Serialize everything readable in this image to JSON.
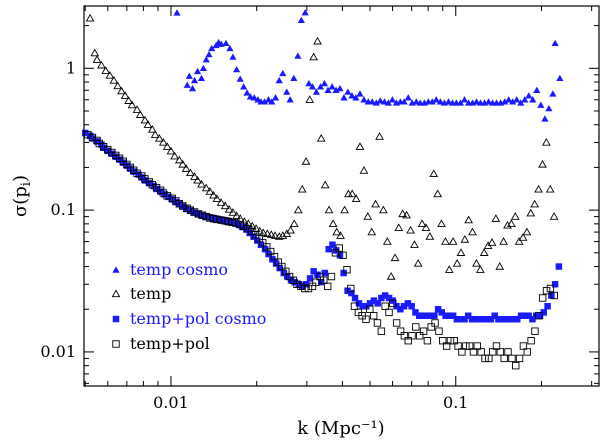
{
  "chart_data": {
    "type": "scatter",
    "xlabel": "k (Mpc⁻¹)",
    "ylabel": "σ(p",
    "ylabel_sub": "i",
    "ylabel_close": ")",
    "x_scale": "log",
    "y_scale": "log",
    "xlim": [
      0.00495,
      0.3184
    ],
    "ylim": [
      0.00575,
      2.75
    ],
    "grid": false,
    "legend_position": "bottom-left",
    "x_tick_labels": [
      {
        "value": 0.01,
        "label": "0.01"
      },
      {
        "value": 0.1,
        "label": "0.1"
      }
    ],
    "y_tick_labels": [
      {
        "value": 0.01,
        "label": "0.01"
      },
      {
        "value": 0.1,
        "label": "0.1"
      },
      {
        "value": 1,
        "label": "1"
      }
    ],
    "series": [
      {
        "name": "temp cosmo",
        "marker": "filled-triangle",
        "color": "#1a1aff",
        "x": [
          0.0105,
          0.0114,
          0.0116,
          0.0119,
          0.0121,
          0.0124,
          0.0128,
          0.013,
          0.0133,
          0.0136,
          0.0139,
          0.0144,
          0.0147,
          0.015,
          0.0156,
          0.0161,
          0.0165,
          0.017,
          0.0175,
          0.018,
          0.0185,
          0.019,
          0.0196,
          0.0202,
          0.0207,
          0.0213,
          0.022,
          0.0226,
          0.0233,
          0.024,
          0.0247,
          0.0255,
          0.0262,
          0.027,
          0.0279,
          0.0287,
          0.0296,
          0.0305,
          0.0314,
          0.0324,
          0.0335,
          0.0346,
          0.0356,
          0.0368,
          0.038,
          0.0392,
          0.0405,
          0.0418,
          0.0432,
          0.0446,
          0.0461,
          0.0476,
          0.0493,
          0.0509,
          0.0526,
          0.0543,
          0.0562,
          0.058,
          0.0599,
          0.0619,
          0.0639,
          0.0659,
          0.0681,
          0.0703,
          0.0727,
          0.075,
          0.0776,
          0.0801,
          0.0827,
          0.0854,
          0.0883,
          0.0912,
          0.0943,
          0.0974,
          0.1005,
          0.1039,
          0.1073,
          0.1109,
          0.1145,
          0.1183,
          0.1221,
          0.1262,
          0.1304,
          0.1347,
          0.1391,
          0.1437,
          0.1485,
          0.1534,
          0.1584,
          0.1637,
          0.1691,
          0.1747,
          0.1805,
          0.1864,
          0.1926,
          0.199,
          0.2056,
          0.2123,
          0.2193,
          0.2233,
          0.232
        ],
        "y": [
          2.46,
          0.76,
          0.88,
          0.72,
          0.82,
          0.95,
          0.85,
          1.0,
          1.15,
          1.25,
          1.38,
          1.45,
          1.52,
          1.48,
          1.5,
          1.38,
          1.2,
          0.98,
          0.84,
          0.74,
          0.67,
          0.63,
          0.62,
          0.6,
          0.58,
          0.58,
          0.6,
          0.58,
          0.62,
          0.82,
          0.92,
          0.68,
          0.6,
          0.85,
          1.22,
          2.18,
          2.47,
          0.78,
          0.74,
          0.68,
          0.74,
          0.78,
          0.7,
          0.74,
          0.7,
          0.72,
          0.62,
          0.68,
          0.64,
          0.62,
          0.66,
          0.6,
          0.58,
          0.58,
          0.57,
          0.59,
          0.58,
          0.57,
          0.6,
          0.57,
          0.58,
          0.58,
          0.62,
          0.57,
          0.58,
          0.57,
          0.57,
          0.58,
          0.58,
          0.6,
          0.58,
          0.57,
          0.58,
          0.57,
          0.57,
          0.57,
          0.6,
          0.57,
          0.57,
          0.58,
          0.57,
          0.57,
          0.58,
          0.57,
          0.57,
          0.57,
          0.58,
          0.6,
          0.58,
          0.6,
          0.57,
          0.6,
          0.64,
          0.6,
          0.7,
          0.55,
          0.44,
          0.52,
          0.66,
          1.5,
          0.85
        ]
      },
      {
        "name": "temp",
        "marker": "open-triangle",
        "color": "#000000",
        "x": [
          0.0052,
          0.0054,
          0.0055,
          0.0057,
          0.0059,
          0.0061,
          0.0063,
          0.0065,
          0.0067,
          0.0069,
          0.0071,
          0.0073,
          0.0076,
          0.0078,
          0.0081,
          0.0083,
          0.0086,
          0.0088,
          0.0091,
          0.0094,
          0.0097,
          0.01,
          0.0103,
          0.0107,
          0.011,
          0.0113,
          0.0117,
          0.0121,
          0.0124,
          0.0128,
          0.0133,
          0.0137,
          0.0141,
          0.0145,
          0.015,
          0.0155,
          0.016,
          0.0165,
          0.017,
          0.0175,
          0.0181,
          0.0187,
          0.0193,
          0.0199,
          0.0205,
          0.0211,
          0.0218,
          0.0225,
          0.0232,
          0.024,
          0.0247,
          0.0255,
          0.0263,
          0.0271,
          0.028,
          0.0289,
          0.0298,
          0.0307,
          0.0317,
          0.0327,
          0.0337,
          0.0348,
          0.0359,
          0.0371,
          0.0382,
          0.0394,
          0.0407,
          0.042,
          0.0433,
          0.0447,
          0.0461,
          0.0476,
          0.0491,
          0.0507,
          0.0523,
          0.054,
          0.0557,
          0.0575,
          0.0593,
          0.0612,
          0.0631,
          0.0651,
          0.0672,
          0.0694,
          0.0716,
          0.0738,
          0.0762,
          0.0786,
          0.0811,
          0.0837,
          0.0864,
          0.0891,
          0.092,
          0.0949,
          0.0979,
          0.1011,
          0.1043,
          0.1076,
          0.111,
          0.1145,
          0.1182,
          0.122,
          0.1258,
          0.1299,
          0.134,
          0.1383,
          0.1427,
          0.1472,
          0.1519,
          0.1568,
          0.1618,
          0.1669,
          0.1723,
          0.1778,
          0.1834,
          0.1893,
          0.1953,
          0.2016,
          0.208,
          0.2146,
          0.2215
        ],
        "y": [
          2.25,
          1.28,
          1.15,
          1.05,
          0.96,
          0.89,
          0.82,
          0.75,
          0.69,
          0.64,
          0.59,
          0.55,
          0.51,
          0.47,
          0.43,
          0.4,
          0.37,
          0.34,
          0.32,
          0.3,
          0.28,
          0.26,
          0.24,
          0.225,
          0.21,
          0.196,
          0.183,
          0.172,
          0.162,
          0.152,
          0.143,
          0.135,
          0.127,
          0.12,
          0.113,
          0.107,
          0.101,
          0.096,
          0.091,
          0.087,
          0.083,
          0.08,
          0.077,
          0.074,
          0.071,
          0.069,
          0.068,
          0.067,
          0.066,
          0.065,
          0.066,
          0.068,
          0.072,
          0.08,
          0.1,
          0.14,
          0.22,
          0.6,
          1.2,
          1.55,
          0.32,
          0.15,
          0.1,
          0.08,
          0.07,
          0.066,
          0.1,
          0.13,
          0.13,
          0.12,
          0.28,
          0.19,
          0.09,
          0.07,
          0.11,
          0.33,
          0.1,
          0.06,
          0.034,
          0.046,
          0.075,
          0.094,
          0.092,
          0.072,
          0.057,
          0.042,
          0.08,
          0.075,
          0.065,
          0.18,
          0.13,
          0.08,
          0.06,
          0.038,
          0.06,
          0.042,
          0.05,
          0.062,
          0.085,
          0.07,
          0.042,
          0.038,
          0.05,
          0.056,
          0.059,
          0.087,
          0.04,
          0.06,
          0.078,
          0.08,
          0.09,
          0.06,
          0.064,
          0.07,
          0.095,
          0.11,
          0.14,
          0.21,
          0.3,
          0.14,
          0.09
        ]
      },
      {
        "name": "temp+pol cosmo",
        "marker": "filled-square",
        "color": "#1a1aff",
        "x": [
          0.005,
          0.0052,
          0.0053,
          0.0055,
          0.0057,
          0.0058,
          0.006,
          0.0062,
          0.0064,
          0.0066,
          0.0068,
          0.007,
          0.0072,
          0.0074,
          0.0077,
          0.0079,
          0.0081,
          0.0084,
          0.0087,
          0.0089,
          0.0092,
          0.0095,
          0.0098,
          0.0101,
          0.0104,
          0.0107,
          0.011,
          0.0113,
          0.0117,
          0.012,
          0.0124,
          0.0128,
          0.0132,
          0.0136,
          0.014,
          0.0144,
          0.0148,
          0.0153,
          0.0158,
          0.0163,
          0.0168,
          0.0173,
          0.0178,
          0.0184,
          0.0189,
          0.0195,
          0.0201,
          0.0207,
          0.0214,
          0.022,
          0.0227,
          0.0234,
          0.0241,
          0.0249,
          0.0256,
          0.0264,
          0.0272,
          0.0281,
          0.0289,
          0.0298,
          0.0308,
          0.0317,
          0.0327,
          0.0337,
          0.0347,
          0.0358,
          0.0369,
          0.038,
          0.0392,
          0.0404,
          0.0417,
          0.043,
          0.0443,
          0.0457,
          0.0471,
          0.0485,
          0.05,
          0.0516,
          0.0532,
          0.0548,
          0.0565,
          0.0583,
          0.0601,
          0.0619,
          0.0639,
          0.0658,
          0.0679,
          0.07,
          0.0722,
          0.0744,
          0.0767,
          0.0791,
          0.0815,
          0.0841,
          0.0867,
          0.0893,
          0.0921,
          0.095,
          0.0979,
          0.1009,
          0.1041,
          0.1073,
          0.1106,
          0.1141,
          0.1176,
          0.1212,
          0.125,
          0.1289,
          0.1329,
          0.137,
          0.1412,
          0.1456,
          0.1501,
          0.1548,
          0.1596,
          0.1645,
          0.1696,
          0.1749,
          0.1803,
          0.1859,
          0.1917,
          0.1976,
          0.2037,
          0.2101,
          0.2166,
          0.2233,
          0.2302
        ],
        "y": [
          0.35,
          0.335,
          0.32,
          0.305,
          0.29,
          0.275,
          0.262,
          0.25,
          0.238,
          0.227,
          0.216,
          0.206,
          0.196,
          0.187,
          0.178,
          0.17,
          0.162,
          0.155,
          0.148,
          0.141,
          0.135,
          0.129,
          0.124,
          0.119,
          0.114,
          0.11,
          0.106,
          0.102,
          0.099,
          0.096,
          0.094,
          0.092,
          0.09,
          0.089,
          0.088,
          0.087,
          0.086,
          0.085,
          0.084,
          0.083,
          0.081,
          0.079,
          0.076,
          0.073,
          0.069,
          0.065,
          0.061,
          0.057,
          0.053,
          0.049,
          0.045,
          0.042,
          0.039,
          0.036,
          0.034,
          0.032,
          0.031,
          0.03,
          0.029,
          0.03,
          0.033,
          0.037,
          0.035,
          0.031,
          0.036,
          0.053,
          0.057,
          0.052,
          0.048,
          0.036,
          0.027,
          0.026,
          0.024,
          0.022,
          0.021,
          0.021,
          0.022,
          0.023,
          0.022,
          0.024,
          0.025,
          0.024,
          0.023,
          0.021,
          0.02,
          0.021,
          0.022,
          0.021,
          0.019,
          0.018,
          0.018,
          0.018,
          0.018,
          0.018,
          0.02,
          0.019,
          0.018,
          0.018,
          0.018,
          0.017,
          0.017,
          0.017,
          0.018,
          0.017,
          0.017,
          0.017,
          0.017,
          0.017,
          0.017,
          0.018,
          0.017,
          0.017,
          0.017,
          0.017,
          0.017,
          0.017,
          0.018,
          0.018,
          0.018,
          0.017,
          0.018,
          0.018,
          0.019,
          0.021,
          0.025,
          0.03,
          0.04
        ]
      },
      {
        "name": "temp+pol",
        "marker": "open-square",
        "color": "#000000",
        "x": [
          0.0051,
          0.0053,
          0.0055,
          0.0056,
          0.0058,
          0.006,
          0.0062,
          0.0064,
          0.0066,
          0.0068,
          0.007,
          0.0072,
          0.0074,
          0.0076,
          0.0079,
          0.0081,
          0.0084,
          0.0086,
          0.0089,
          0.0092,
          0.0094,
          0.0097,
          0.0101,
          0.0104,
          0.0107,
          0.011,
          0.0114,
          0.0117,
          0.0121,
          0.0125,
          0.0129,
          0.0133,
          0.0137,
          0.0141,
          0.0145,
          0.015,
          0.0155,
          0.0159,
          0.0164,
          0.0169,
          0.0175,
          0.018,
          0.0186,
          0.0192,
          0.0198,
          0.0204,
          0.021,
          0.0217,
          0.0224,
          0.0231,
          0.0238,
          0.0245,
          0.0253,
          0.0261,
          0.0269,
          0.0277,
          0.0286,
          0.0295,
          0.0304,
          0.0314,
          0.0323,
          0.0334,
          0.0344,
          0.0355,
          0.0366,
          0.0378,
          0.039,
          0.0402,
          0.0415,
          0.0428,
          0.0441,
          0.0455,
          0.0469,
          0.0484,
          0.0499,
          0.0515,
          0.0531,
          0.0548,
          0.0565,
          0.0583,
          0.0601,
          0.062,
          0.064,
          0.066,
          0.0681,
          0.0702,
          0.0724,
          0.0747,
          0.0771,
          0.0795,
          0.082,
          0.0846,
          0.0873,
          0.09,
          0.0929,
          0.0958,
          0.0988,
          0.1019,
          0.1051,
          0.1085,
          0.1119,
          0.1154,
          0.119,
          0.1228,
          0.1267,
          0.1307,
          0.1348,
          0.139,
          0.1434,
          0.148,
          0.1526,
          0.1575,
          0.1624,
          0.1675,
          0.1728,
          0.1783,
          0.1839,
          0.1897,
          0.1957,
          0.2019,
          0.2083,
          0.2149,
          0.2217
        ],
        "y": [
          0.34,
          0.325,
          0.31,
          0.295,
          0.28,
          0.267,
          0.255,
          0.243,
          0.232,
          0.221,
          0.21,
          0.2,
          0.191,
          0.182,
          0.174,
          0.166,
          0.158,
          0.151,
          0.144,
          0.138,
          0.132,
          0.126,
          0.121,
          0.116,
          0.111,
          0.107,
          0.103,
          0.1,
          0.097,
          0.094,
          0.092,
          0.09,
          0.088,
          0.087,
          0.086,
          0.085,
          0.084,
          0.083,
          0.082,
          0.081,
          0.079,
          0.077,
          0.074,
          0.071,
          0.067,
          0.063,
          0.059,
          0.055,
          0.051,
          0.047,
          0.043,
          0.04,
          0.037,
          0.034,
          0.032,
          0.03,
          0.029,
          0.028,
          0.028,
          0.029,
          0.031,
          0.034,
          0.032,
          0.029,
          0.034,
          0.05,
          0.054,
          0.048,
          0.038,
          0.028,
          0.021,
          0.019,
          0.018,
          0.017,
          0.02,
          0.018,
          0.016,
          0.014,
          0.021,
          0.019,
          0.022,
          0.016,
          0.014,
          0.013,
          0.012,
          0.013,
          0.015,
          0.013,
          0.014,
          0.012,
          0.015,
          0.016,
          0.014,
          0.012,
          0.011,
          0.012,
          0.012,
          0.011,
          0.01,
          0.011,
          0.011,
          0.01,
          0.011,
          0.01,
          0.009,
          0.009,
          0.01,
          0.011,
          0.01,
          0.009,
          0.01,
          0.009,
          0.008,
          0.009,
          0.011,
          0.01,
          0.012,
          0.014,
          0.018,
          0.024,
          0.027,
          0.028,
          0.025
        ]
      }
    ]
  }
}
